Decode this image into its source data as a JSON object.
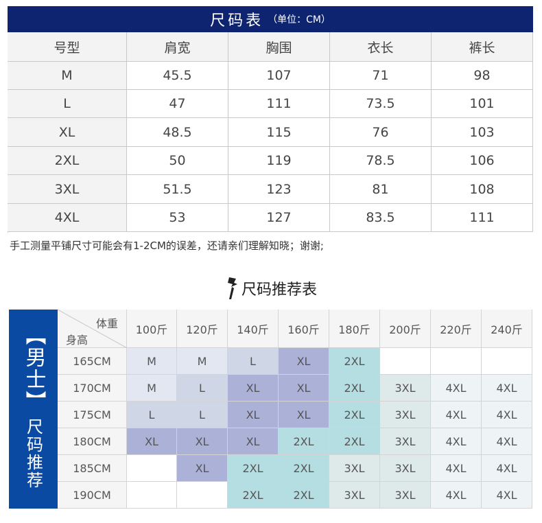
{
  "size_table": {
    "title": "尺码表",
    "unit": "（单位：CM）",
    "header": [
      "号型",
      "肩宽",
      "胸围",
      "衣长",
      "裤长"
    ],
    "rows": [
      [
        "M",
        "45.5",
        "107",
        "71",
        "98"
      ],
      [
        "L",
        "47",
        "111",
        "73.5",
        "101"
      ],
      [
        "XL",
        "48.5",
        "115",
        "76",
        "103"
      ],
      [
        "2XL",
        "50",
        "119",
        "78.5",
        "106"
      ],
      [
        "3XL",
        "51.5",
        "123",
        "81",
        "108"
      ],
      [
        "4XL",
        "53",
        "127",
        "83.5",
        "111"
      ]
    ]
  },
  "note": "手工测量平铺尺寸可能会有1-2CM的误差，还请亲们理解知晓；谢谢;",
  "recommend": {
    "title": "尺码推荐表",
    "side_title": "【男士】",
    "side_subtitle": "尺码推荐",
    "weight_label": "体重",
    "height_label": "身高",
    "weights": [
      "100斤",
      "120斤",
      "140斤",
      "160斤",
      "180斤",
      "200斤",
      "220斤",
      "240斤"
    ],
    "rows": [
      {
        "height": "165CM",
        "sizes": [
          "M",
          "M",
          "L",
          "XL",
          "2XL",
          null,
          null,
          null
        ]
      },
      {
        "height": "170CM",
        "sizes": [
          "M",
          "L",
          "XL",
          "XL",
          "2XL",
          "3XL",
          "4XL",
          "4XL"
        ]
      },
      {
        "height": "175CM",
        "sizes": [
          "L",
          "L",
          "XL",
          "XL",
          "2XL",
          "3XL",
          "4XL",
          "4XL"
        ]
      },
      {
        "height": "180CM",
        "sizes": [
          "XL",
          "XL",
          "XL",
          "2XL",
          "2XL",
          "3XL",
          "4XL",
          "4XL"
        ]
      },
      {
        "height": "185CM",
        "sizes": [
          null,
          "XL",
          "2XL",
          "2XL",
          "3XL",
          "3XL",
          "4XL",
          "4XL"
        ]
      },
      {
        "height": "190CM",
        "sizes": [
          null,
          null,
          "2XL",
          "2XL",
          "3XL",
          "3XL",
          "4XL",
          "4XL"
        ]
      }
    ],
    "size_colors": {
      "M": "#e3e7f1",
      "L": "#cfd7e7",
      "XL": "#abb1d7",
      "2XL": "#b4dee1",
      "3XL": "#dee9ea",
      "4XL": "#eef4f6"
    }
  }
}
